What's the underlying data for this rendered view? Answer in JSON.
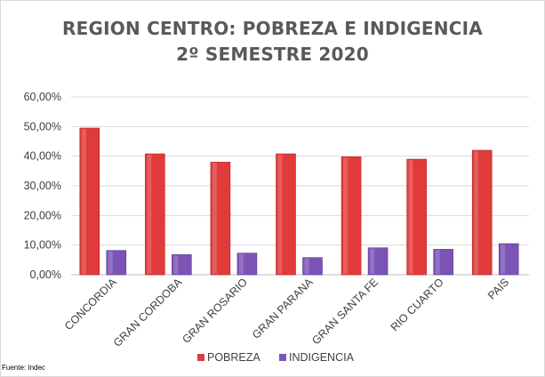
{
  "chart_data": {
    "type": "bar",
    "title": "REGION CENTRO: POBREZA E INDIGENCIA",
    "subtitle": "2º SEMESTRE 2020",
    "categories": [
      "CONCORDIA",
      "GRAN CORDOBA",
      "GRAN ROSARIO",
      "GRAN PARANA",
      "GRAN SANTA FE",
      "RIO CUARTO",
      "PAIS"
    ],
    "series": [
      {
        "name": "POBREZA",
        "color": "#e03a3a",
        "values": [
          49.5,
          40.8,
          38.0,
          40.8,
          39.8,
          39.0,
          42.0
        ]
      },
      {
        "name": "INDIGENCIA",
        "color": "#7b54b6",
        "values": [
          8.2,
          6.8,
          7.3,
          5.8,
          9.1,
          8.6,
          10.5
        ]
      }
    ],
    "y_ticks": [
      "0,00%",
      "10,00%",
      "20,00%",
      "30,00%",
      "40,00%",
      "50,00%",
      "60,00%"
    ],
    "ylim": [
      0,
      60
    ],
    "grid": true,
    "legend_position": "bottom"
  },
  "source": "Fuente: Indec"
}
